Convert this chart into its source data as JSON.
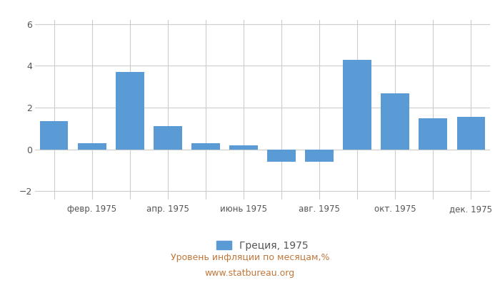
{
  "months": [
    1,
    2,
    3,
    4,
    5,
    6,
    7,
    8,
    9,
    10,
    11,
    12
  ],
  "tick_labels": [
    "",
    "февр. 1975",
    "",
    "апр. 1975",
    "",
    "июнь 1975",
    "",
    "авг. 1975",
    "",
    "окт. 1975",
    "",
    "дек. 1975"
  ],
  "values": [
    1.35,
    0.3,
    3.7,
    1.1,
    0.3,
    0.2,
    -0.6,
    -0.6,
    4.3,
    2.7,
    1.5,
    1.55
  ],
  "bar_color": "#5b9bd5",
  "ylim": [
    -2.4,
    6.2
  ],
  "yticks": [
    -2,
    0,
    2,
    4,
    6
  ],
  "legend_label": "Греция, 1975",
  "footer_line1": "Уровень инфляции по месяцам,%",
  "footer_line2": "www.statbureau.org",
  "background_color": "#ffffff",
  "grid_color": "#cccccc",
  "tick_color": "#555555",
  "footer_color": "#c0783c"
}
